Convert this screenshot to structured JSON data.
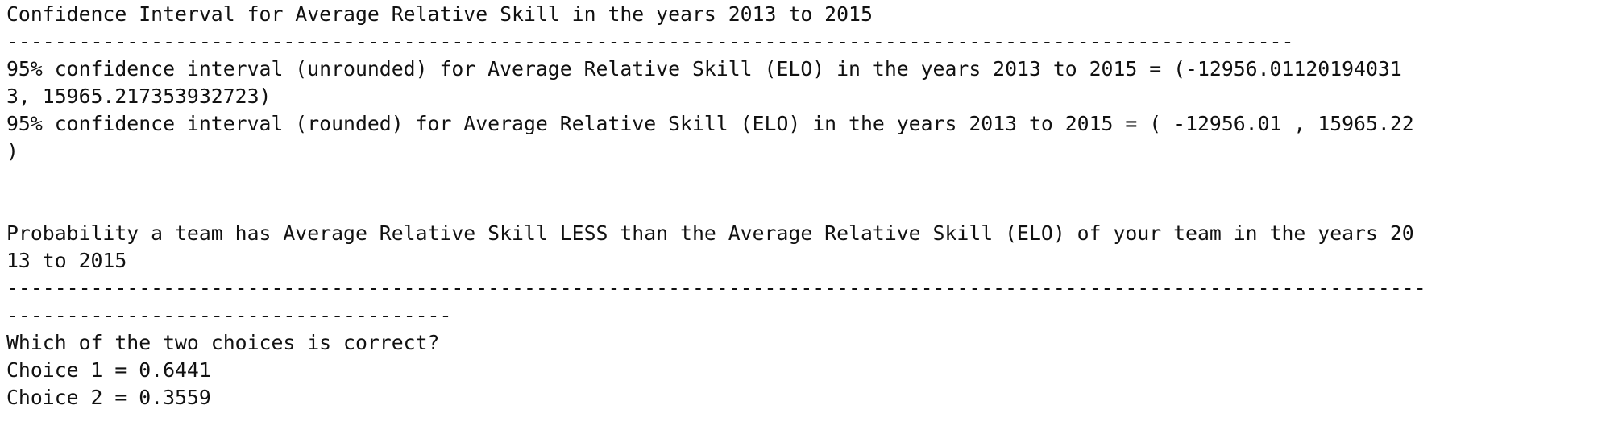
{
  "output": {
    "ci_title": "Confidence Interval for Average Relative Skill in the years 2013 to 2015",
    "ci_rule": "-----------------------------------------------------------------------------------------------------------",
    "ci_unrounded_1": "95% confidence interval (unrounded) for Average Relative Skill (ELO) in the years 2013 to 2015 = (-12956.01120194031",
    "ci_unrounded_2": "3, 15965.217353932723)",
    "ci_rounded_1": "95% confidence interval (rounded) for Average Relative Skill (ELO) in the years 2013 to 2015 = ( -12956.01 , 15965.22",
    "ci_rounded_2": ")",
    "blank_1": "",
    "blank_2": "",
    "prob_title_1": "Probability a team has Average Relative Skill LESS than the Average Relative Skill (ELO) of your team in the years 20",
    "prob_title_2": "13 to 2015",
    "prob_rule_1": "----------------------------------------------------------------------------------------------------------------------",
    "prob_rule_2": "-------------------------------------",
    "question": "Which of the two choices is correct?",
    "choice_1": "Choice 1 = 0.6441",
    "choice_2": "Choice 2 = 0.3559"
  }
}
